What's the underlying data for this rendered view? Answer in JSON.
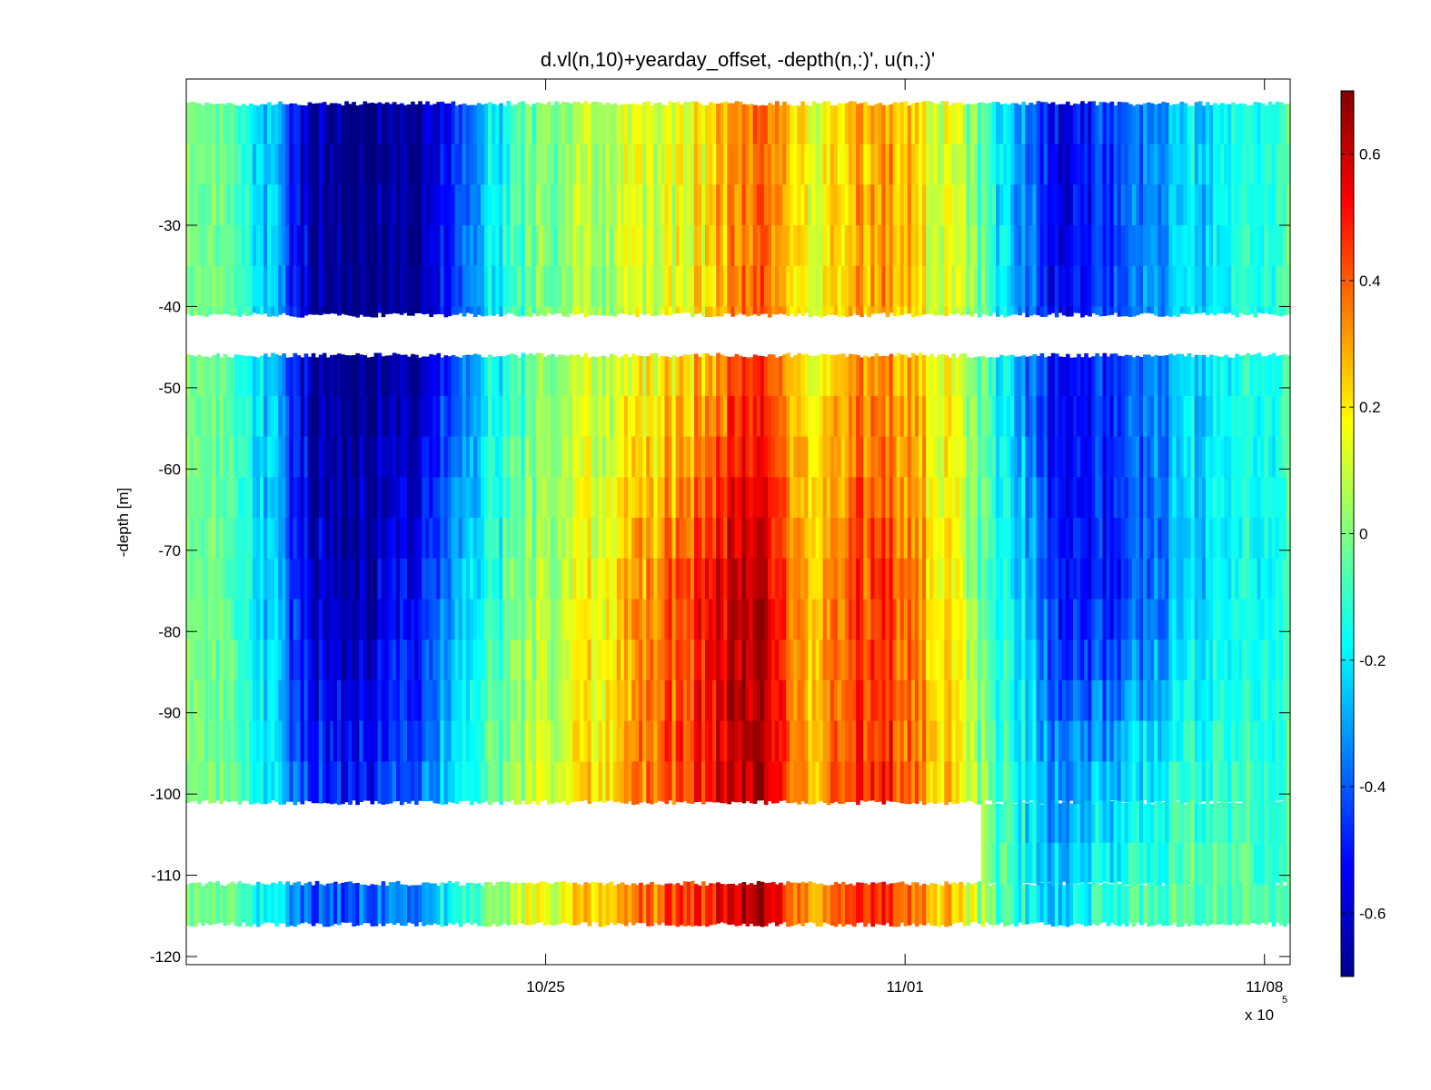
{
  "chart_data": {
    "type": "heatmap",
    "title": "d.vl(n,10)+yearday_offset, -depth(n,:)', u(n,:)'",
    "xlabel": "",
    "ylabel": "-depth [m]",
    "x_exponent_label": "x 10",
    "x_exponent_power": "5",
    "xtick_labels": [
      "10/25",
      "11/01",
      "11/08"
    ],
    "xlim_days_from_1018": [
      0,
      21.5
    ],
    "xtick_days_from_1018": [
      7,
      14,
      21
    ],
    "ylim": [
      -121,
      -12
    ],
    "yticks": [
      -30,
      -40,
      -50,
      -60,
      -70,
      -80,
      -90,
      -100,
      -110,
      -120
    ],
    "ytick_labels": [
      "-30",
      "-40",
      "-50",
      "-60",
      "-70",
      "-80",
      "-90",
      "-100",
      "-110",
      "-120"
    ],
    "colorbar": {
      "colormap": "jet",
      "clim": [
        -0.7,
        0.7
      ],
      "ticks": [
        0.6,
        0.4,
        0.2,
        0,
        -0.2,
        -0.4,
        -0.6
      ],
      "tick_labels": [
        "0.6",
        "0.4",
        "0.2",
        "0",
        "-0.2",
        "-0.4",
        "-0.6"
      ]
    },
    "depth_bands": [
      {
        "top": -15,
        "bottom": -41
      },
      {
        "top": -46,
        "bottom": -101
      },
      {
        "top": -111,
        "bottom": -116
      }
    ],
    "missing_region": {
      "x_end_days": 15.5,
      "top": -101,
      "bottom": -111
    },
    "velocity_profile_keyframes": {
      "x_days": [
        0,
        1.5,
        2.5,
        3.5,
        4.5,
        5.3,
        6.0,
        7.0,
        8.5,
        9.8,
        10.7,
        11.2,
        12.0,
        12.8,
        13.7,
        14.8,
        15.5,
        16.3,
        17.2,
        17.8,
        19.0,
        20.0,
        21.5
      ],
      "u_upper": [
        0.0,
        -0.2,
        -0.65,
        -0.7,
        -0.65,
        -0.45,
        -0.2,
        0.0,
        0.08,
        0.15,
        0.32,
        0.42,
        0.15,
        0.25,
        0.3,
        0.12,
        -0.05,
        -0.35,
        -0.6,
        -0.45,
        -0.3,
        -0.2,
        -0.05
      ],
      "u_middle": [
        0.0,
        -0.2,
        -0.6,
        -0.62,
        -0.5,
        -0.3,
        -0.1,
        0.05,
        0.22,
        0.45,
        0.6,
        0.66,
        0.25,
        0.4,
        0.45,
        0.2,
        -0.05,
        -0.25,
        -0.55,
        -0.5,
        -0.35,
        -0.2,
        -0.1
      ],
      "u_lower": [
        0.0,
        -0.15,
        -0.4,
        -0.4,
        -0.3,
        -0.15,
        0.0,
        0.15,
        0.3,
        0.45,
        0.58,
        0.66,
        0.28,
        0.45,
        0.45,
        0.25,
        0.05,
        -0.15,
        -0.25,
        -0.1,
        -0.05,
        -0.05,
        -0.05
      ]
    }
  }
}
